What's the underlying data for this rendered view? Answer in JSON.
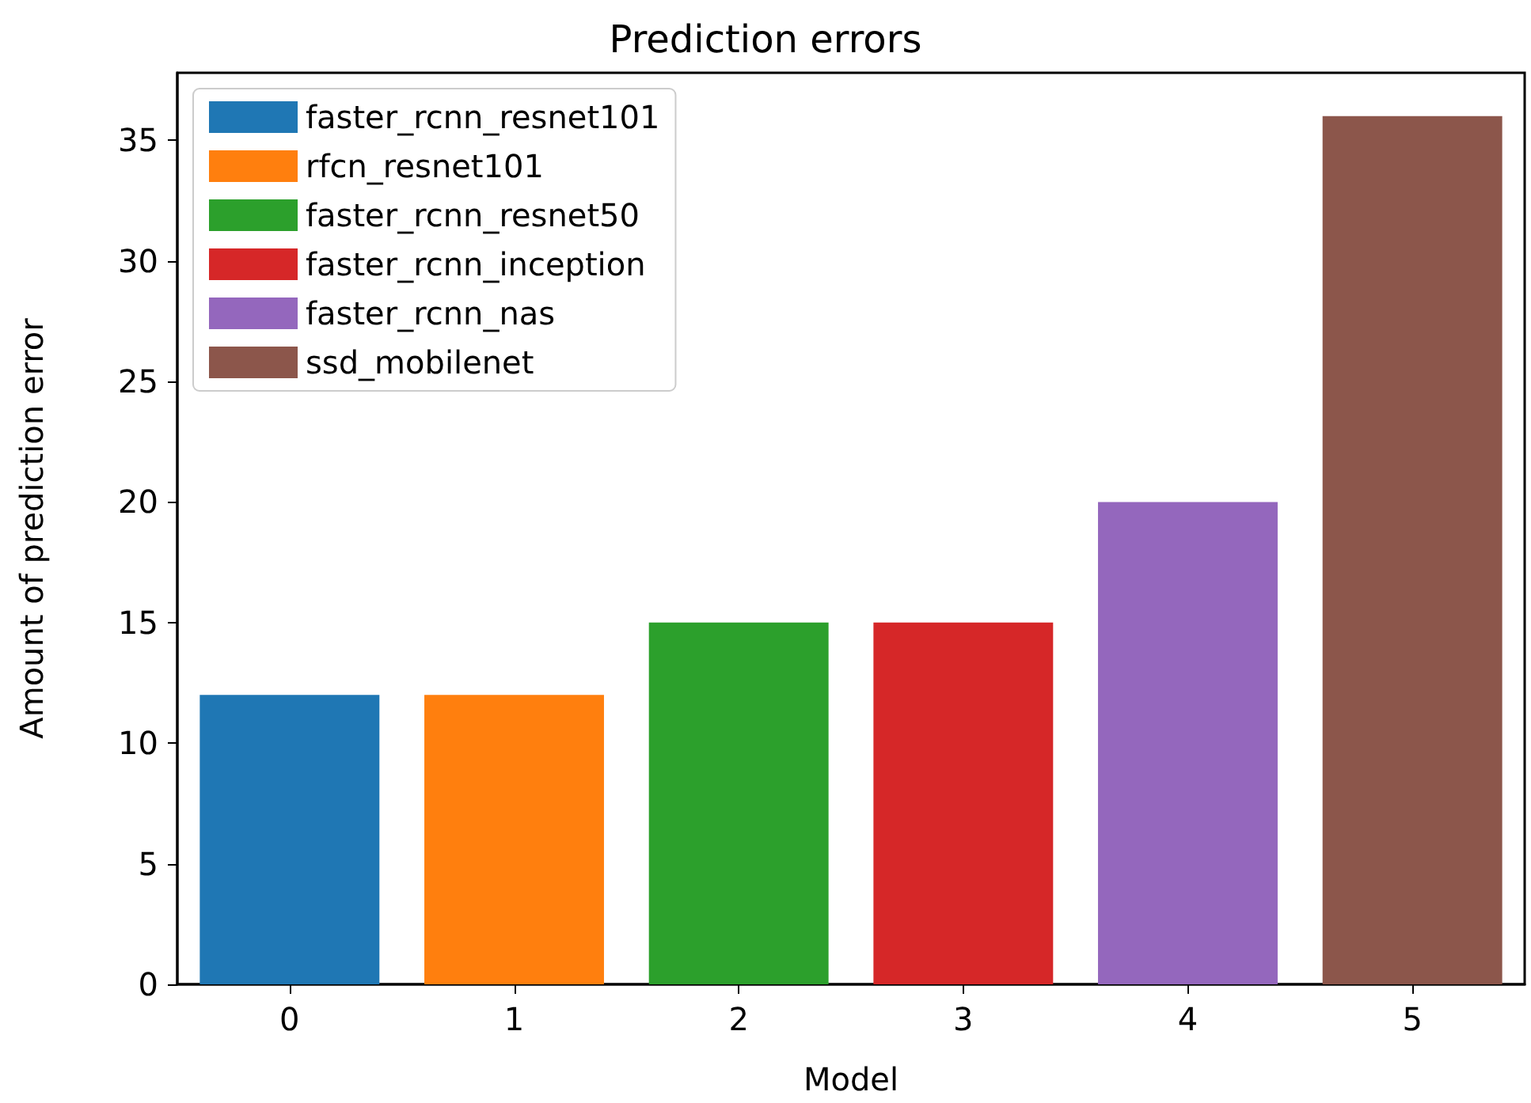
{
  "chart_data": {
    "type": "bar",
    "title": "Prediction errors",
    "xlabel": "Model",
    "ylabel": "Amount of prediction error",
    "categories": [
      "0",
      "1",
      "2",
      "3",
      "4",
      "5"
    ],
    "series": [
      {
        "name": "faster_rcnn_resnet101",
        "color": "#1f77b4",
        "values": [
          12,
          null,
          null,
          null,
          null,
          null
        ]
      },
      {
        "name": "rfcn_resnet101",
        "color": "#ff7f0e",
        "values": [
          null,
          12,
          null,
          null,
          null,
          null
        ]
      },
      {
        "name": "faster_rcnn_resnet50",
        "color": "#2ca02c",
        "values": [
          null,
          null,
          15,
          null,
          null,
          null
        ]
      },
      {
        "name": "faster_rcnn_inception",
        "color": "#d62728",
        "values": [
          null,
          null,
          null,
          15,
          null,
          null
        ]
      },
      {
        "name": "faster_rcnn_nas",
        "color": "#9467bd",
        "values": [
          null,
          null,
          null,
          null,
          20,
          null
        ]
      },
      {
        "name": "ssd_mobilenet",
        "color": "#8c564b",
        "values": [
          null,
          null,
          null,
          null,
          null,
          36
        ]
      }
    ],
    "ylim": [
      0,
      37.8
    ],
    "yticks": [
      0,
      5,
      10,
      15,
      20,
      25,
      30,
      35
    ],
    "grid": false,
    "legend": "top left"
  }
}
